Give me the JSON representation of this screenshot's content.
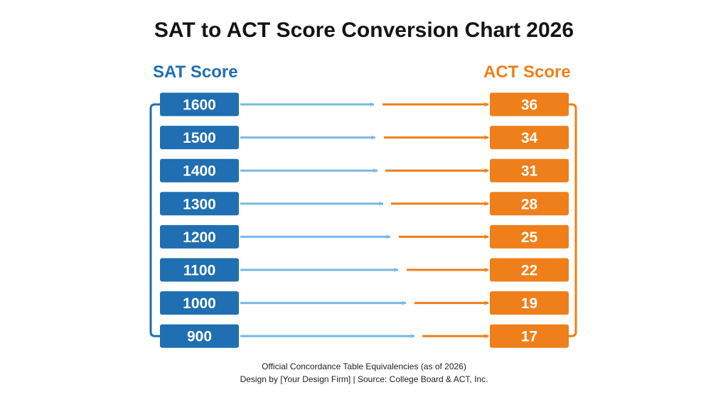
{
  "title": "SAT to ACT Score Conversion Chart 2026",
  "headers": {
    "sat": "SAT Score",
    "act": "ACT Score"
  },
  "colors": {
    "sat_box": "#1f6fb2",
    "act_box": "#ef7f1a",
    "sat_arrow": "#7ab8e6",
    "act_arrow": "#ef7f1a",
    "sat_bracket": "#1f6fb2",
    "act_bracket": "#ef7f1a"
  },
  "rows": [
    {
      "sat": "1600",
      "act": "36"
    },
    {
      "sat": "1500",
      "act": "34"
    },
    {
      "sat": "1400",
      "act": "31"
    },
    {
      "sat": "1300",
      "act": "28"
    },
    {
      "sat": "1200",
      "act": "25"
    },
    {
      "sat": "1100",
      "act": "22"
    },
    {
      "sat": "1000",
      "act": "19"
    },
    {
      "sat": "900",
      "act": "17"
    }
  ],
  "footer": {
    "line1": "Official Concordance Table Equivalencies (as of 2026)",
    "line2": "Design by [Your Design Firm] | Source: College Board & ACT, Inc."
  }
}
